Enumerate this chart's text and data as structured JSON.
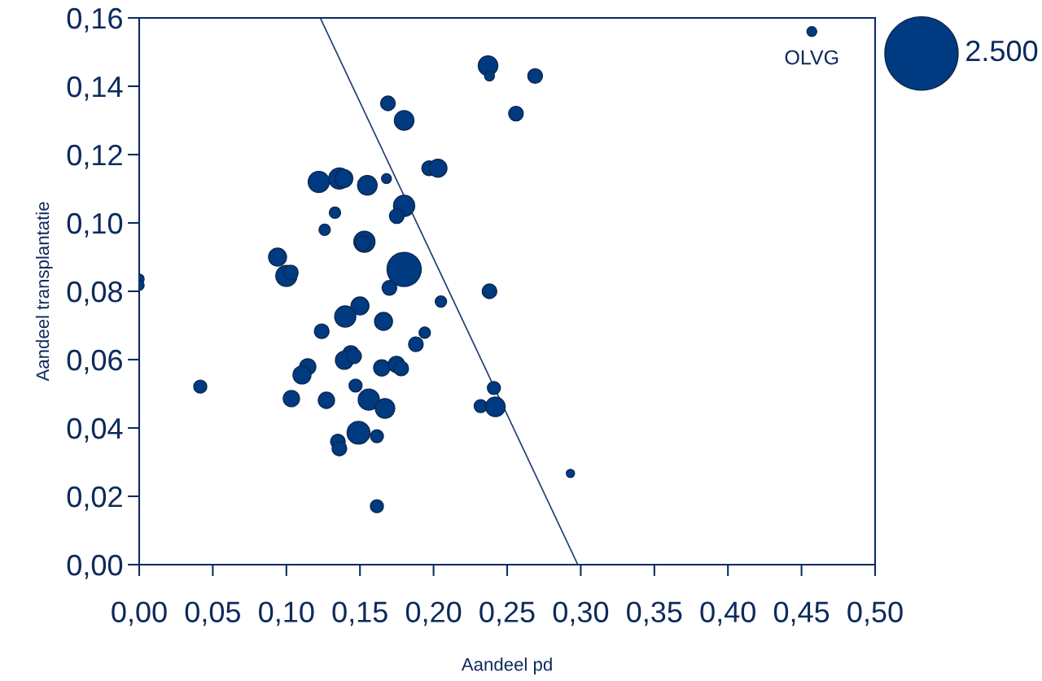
{
  "chart_data": {
    "type": "bubble",
    "xlabel": "Aandeel pd",
    "ylabel": "Aandeel transplantatie",
    "xlim": [
      0,
      0.5
    ],
    "ylim": [
      0,
      0.16
    ],
    "xticks": [
      {
        "value": 0,
        "label": "0,00"
      },
      {
        "value": 0.05,
        "label": "0,05"
      },
      {
        "value": 0.1,
        "label": "0,10"
      },
      {
        "value": 0.15,
        "label": "0,15"
      },
      {
        "value": 0.2,
        "label": "0,20"
      },
      {
        "value": 0.25,
        "label": "0,25"
      },
      {
        "value": 0.3,
        "label": "0,30"
      },
      {
        "value": 0.35,
        "label": "0,35"
      },
      {
        "value": 0.4,
        "label": "0,40"
      },
      {
        "value": 0.45,
        "label": "0,45"
      },
      {
        "value": 0.5,
        "label": "0,50"
      }
    ],
    "yticks": [
      {
        "value": 0,
        "label": "0,00"
      },
      {
        "value": 0.02,
        "label": "0,02"
      },
      {
        "value": 0.04,
        "label": "0,04"
      },
      {
        "value": 0.06,
        "label": "0,06"
      },
      {
        "value": 0.08,
        "label": "0,08"
      },
      {
        "value": 0.1,
        "label": "0,10"
      },
      {
        "value": 0.12,
        "label": "0,12"
      },
      {
        "value": 0.14,
        "label": "0,14"
      },
      {
        "value": 0.16,
        "label": "0,16"
      }
    ],
    "grid": false,
    "legend": false,
    "size_legend": [
      {
        "value": 2500,
        "label": "2.500"
      }
    ],
    "annotations": [
      {
        "text": "OLVG",
        "x": 0.457,
        "y": 0.156
      }
    ],
    "series": [
      {
        "color": "#003a80",
        "x": [
          0.457,
          0.237,
          0.238,
          0.269,
          0.256,
          0.169,
          0.18,
          0.197,
          0.203,
          0.122,
          0.136,
          0.139,
          0.155,
          0.168,
          0.18,
          0.133,
          0.175,
          0.126,
          0.153,
          0.152,
          0.094,
          0.1,
          0.103,
          0.18,
          0.17,
          0.0,
          0.0,
          0.238,
          0.205,
          0.15,
          0.14,
          0.166,
          0.124,
          0.194,
          0.188,
          0.1145,
          0.1106,
          0.1438,
          0.1394,
          0.146,
          0.1648,
          0.1748,
          0.178,
          0.0415,
          0.1034,
          0.1272,
          0.147,
          0.156,
          0.167,
          0.149,
          0.1615,
          0.135,
          0.136,
          0.1615,
          0.241,
          0.232,
          0.242,
          0.293
        ],
        "values": [
          0.156,
          0.146,
          0.143,
          0.143,
          0.132,
          0.135,
          0.13,
          0.116,
          0.116,
          0.112,
          0.113,
          0.113,
          0.111,
          0.113,
          0.105,
          0.103,
          0.102,
          0.098,
          0.0945,
          0.094,
          0.09,
          0.0845,
          0.0855,
          0.0864,
          0.081,
          0.0836,
          0.0817,
          0.08,
          0.077,
          0.0757,
          0.0726,
          0.0712,
          0.0683,
          0.0679,
          0.0645,
          0.0579,
          0.0555,
          0.0617,
          0.0598,
          0.061,
          0.0576,
          0.0586,
          0.0574,
          0.0521,
          0.0486,
          0.0481,
          0.0524,
          0.0483,
          0.0457,
          0.0386,
          0.0376,
          0.036,
          0.034,
          0.0171,
          0.0517,
          0.0464,
          0.0462,
          0.0267
        ],
        "sizes": [
          45,
          178,
          45,
          100,
          100,
          100,
          178,
          100,
          150,
          209,
          209,
          150,
          178,
          45,
          209,
          60,
          100,
          60,
          209,
          100,
          150,
          209,
          100,
          545,
          100,
          45,
          45,
          100,
          60,
          150,
          209,
          150,
          100,
          60,
          100,
          123,
          150,
          123,
          150,
          100,
          123,
          123,
          100,
          79,
          123,
          123,
          79,
          209,
          178,
          242,
          79,
          100,
          100,
          79,
          79,
          79,
          178,
          31
        ]
      },
      {
        "type": "line",
        "color": "#1f3d73",
        "x": [
          0.123,
          0.298
        ],
        "values": [
          0.16,
          0.0
        ]
      }
    ]
  }
}
